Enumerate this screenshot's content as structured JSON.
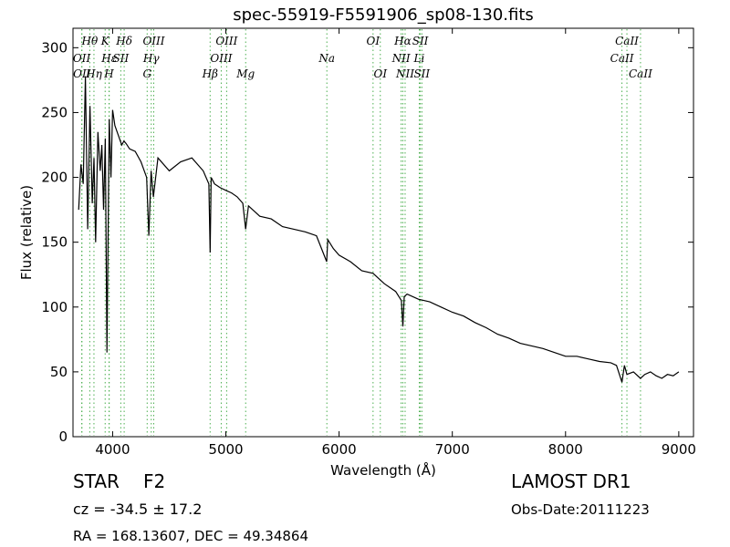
{
  "chart_data": {
    "type": "line",
    "title": "spec-55919-F5591906_sp08-130.fits",
    "xlabel": "Wavelength (Å)",
    "ylabel": "Flux (relative)",
    "xlim": [
      3650,
      9130
    ],
    "ylim": [
      0,
      315
    ],
    "xticks": [
      4000,
      5000,
      6000,
      7000,
      8000,
      9000
    ],
    "yticks": [
      0,
      50,
      100,
      150,
      200,
      250,
      300
    ],
    "grid": false,
    "line_color": "#000000",
    "marker_color": "#4caf50",
    "series": [
      {
        "x": [
          3700,
          3720,
          3740,
          3760,
          3780,
          3800,
          3820,
          3835,
          3850,
          3870,
          3890,
          3905,
          3920,
          3935,
          3950,
          3970,
          3985,
          4000,
          4020,
          4040,
          4060,
          4080,
          4100,
          4120,
          4150,
          4200,
          4250,
          4300,
          4320,
          4340,
          4360,
          4400,
          4500,
          4600,
          4700,
          4800,
          4850,
          4861,
          4870,
          4900,
          4950,
          5000,
          5050,
          5100,
          5150,
          5175,
          5200,
          5300,
          5400,
          5500,
          5600,
          5700,
          5800,
          5890,
          5900,
          5950,
          6000,
          6100,
          6200,
          6300,
          6400,
          6500,
          6550,
          6563,
          6575,
          6600,
          6700,
          6800,
          6900,
          7000,
          7100,
          7200,
          7300,
          7400,
          7500,
          7600,
          7700,
          7800,
          7900,
          8000,
          8100,
          8200,
          8300,
          8400,
          8450,
          8498,
          8520,
          8542,
          8600,
          8662,
          8700,
          8750,
          8800,
          8850,
          8900,
          8950,
          9000
        ],
        "y": [
          175,
          210,
          195,
          278,
          160,
          255,
          180,
          215,
          150,
          235,
          205,
          225,
          175,
          230,
          65,
          245,
          200,
          252,
          240,
          235,
          230,
          225,
          228,
          226,
          222,
          220,
          212,
          200,
          155,
          205,
          185,
          215,
          205,
          212,
          215,
          205,
          195,
          142,
          200,
          195,
          192,
          190,
          188,
          185,
          180,
          160,
          178,
          170,
          168,
          162,
          160,
          158,
          155,
          135,
          152,
          145,
          140,
          135,
          128,
          126,
          118,
          112,
          105,
          85,
          108,
          110,
          106,
          104,
          100,
          96,
          93,
          88,
          84,
          79,
          76,
          72,
          70,
          68,
          65,
          62,
          62,
          60,
          58,
          57,
          55,
          42,
          55,
          48,
          50,
          45,
          48,
          50,
          47,
          45,
          48,
          47,
          50
        ]
      }
    ],
    "lines": [
      {
        "label": "Hθ",
        "x": 3798,
        "row": 1,
        "color": "#4caf50"
      },
      {
        "label": "OII",
        "x": 3727,
        "row": 2,
        "color": "#4caf50"
      },
      {
        "label": "OII",
        "x": 3729,
        "row": 3,
        "color": "#4caf50"
      },
      {
        "label": "Hη",
        "x": 3835,
        "row": 3,
        "color": "#4caf50"
      },
      {
        "label": "K",
        "x": 3934,
        "row": 1,
        "color": "#4caf50"
      },
      {
        "label": "Hε",
        "x": 3970,
        "row": 2,
        "color": "#4caf50"
      },
      {
        "label": "H",
        "x": 3968,
        "row": 3,
        "color": "#4caf50"
      },
      {
        "label": "SII",
        "x": 4072,
        "row": 2,
        "color": "#4caf50"
      },
      {
        "label": "Hδ",
        "x": 4102,
        "row": 1,
        "color": "#4caf50"
      },
      {
        "label": "G",
        "x": 4305,
        "row": 3,
        "color": "#4caf50"
      },
      {
        "label": "Hγ",
        "x": 4341,
        "row": 2,
        "color": "#4caf50"
      },
      {
        "label": "OIII",
        "x": 4363,
        "row": 1,
        "color": "#4caf50"
      },
      {
        "label": "Hβ",
        "x": 4861,
        "row": 3,
        "color": "#4caf50"
      },
      {
        "label": "OIII",
        "x": 4959,
        "row": 2,
        "color": "#4caf50"
      },
      {
        "label": "OIII",
        "x": 5007,
        "row": 1,
        "color": "#4caf50"
      },
      {
        "label": "Mg",
        "x": 5175,
        "row": 3,
        "color": "#4caf50"
      },
      {
        "label": "Na",
        "x": 5892,
        "row": 2,
        "color": "#4caf50"
      },
      {
        "label": "OI",
        "x": 6300,
        "row": 1,
        "color": "#4caf50"
      },
      {
        "label": "OI",
        "x": 6364,
        "row": 3,
        "color": "#4caf50"
      },
      {
        "label": "NII",
        "x": 6548,
        "row": 2,
        "color": "#4caf50"
      },
      {
        "label": "NII",
        "x": 6583,
        "row": 3,
        "color": "#4caf50"
      },
      {
        "label": "Hα",
        "x": 6563,
        "row": 1,
        "color": "#4caf50"
      },
      {
        "label": "Li",
        "x": 6708,
        "row": 2,
        "color": "#4caf50"
      },
      {
        "label": "SII",
        "x": 6717,
        "row": 1,
        "color": "#4caf50"
      },
      {
        "label": "SII",
        "x": 6731,
        "row": 3,
        "color": "#4caf50"
      },
      {
        "label": "CaII",
        "x": 8498,
        "row": 2,
        "color": "#4caf50"
      },
      {
        "label": "CaII",
        "x": 8542,
        "row": 1,
        "color": "#4caf50"
      },
      {
        "label": "CaII",
        "x": 8662,
        "row": 3,
        "color": "#4caf50"
      }
    ]
  },
  "info": {
    "object_class": "STAR",
    "subclass": "F2",
    "redshift": "cz = -34.5 ± 17.2",
    "coords": "RA = 168.13607, DEC = 49.34864",
    "survey": "LAMOST DR1",
    "obs_date": "Obs-Date:20111223"
  }
}
